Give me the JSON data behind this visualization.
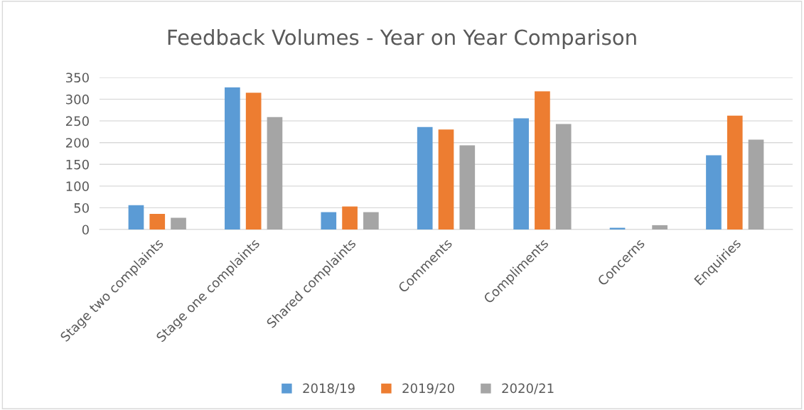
{
  "chart_data": {
    "type": "bar",
    "title": "Feedback Volumes - Year on Year Comparison",
    "categories": [
      "Stage two complaints",
      "Stage one complaints",
      "Shared complaints",
      "Comments",
      "Compliments",
      "Concerns",
      "Enquiries"
    ],
    "series": [
      {
        "name": "2018/19",
        "color": "#5b9bd5",
        "values": [
          56,
          327,
          40,
          236,
          256,
          4,
          171
        ]
      },
      {
        "name": "2019/20",
        "color": "#ed7d31",
        "values": [
          36,
          315,
          53,
          230,
          318,
          0,
          262
        ]
      },
      {
        "name": "2020/21",
        "color": "#a5a5a5",
        "values": [
          27,
          259,
          40,
          194,
          243,
          10,
          207
        ]
      }
    ],
    "ylim": [
      0,
      350
    ],
    "yticks": [
      0,
      50,
      100,
      150,
      200,
      250,
      300,
      350
    ],
    "grid": "y",
    "legend": "bottom"
  }
}
